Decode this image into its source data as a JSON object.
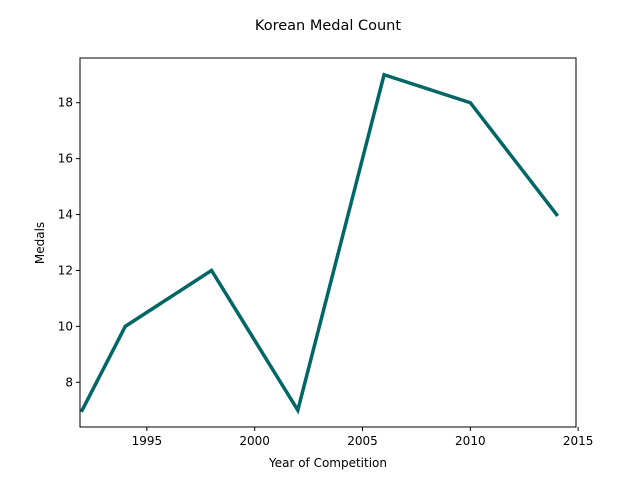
{
  "chart_data": {
    "type": "line",
    "title": "Korean Medal Count",
    "xlabel": "Year of Competition",
    "ylabel": "Medals",
    "x": [
      1992,
      1994,
      1998,
      2002,
      2006,
      2010,
      2014
    ],
    "series": [
      {
        "values": [
          7,
          10,
          12,
          7,
          19,
          18,
          14
        ],
        "color": "#006666"
      }
    ],
    "xlim": [
      1991.9,
      2014.9
    ],
    "ylim": [
      6.4,
      19.6
    ],
    "xticks": [
      1995,
      2000,
      2005,
      2010,
      2015
    ],
    "yticks": [
      8,
      10,
      12,
      14,
      16,
      18
    ],
    "grid": false
  }
}
